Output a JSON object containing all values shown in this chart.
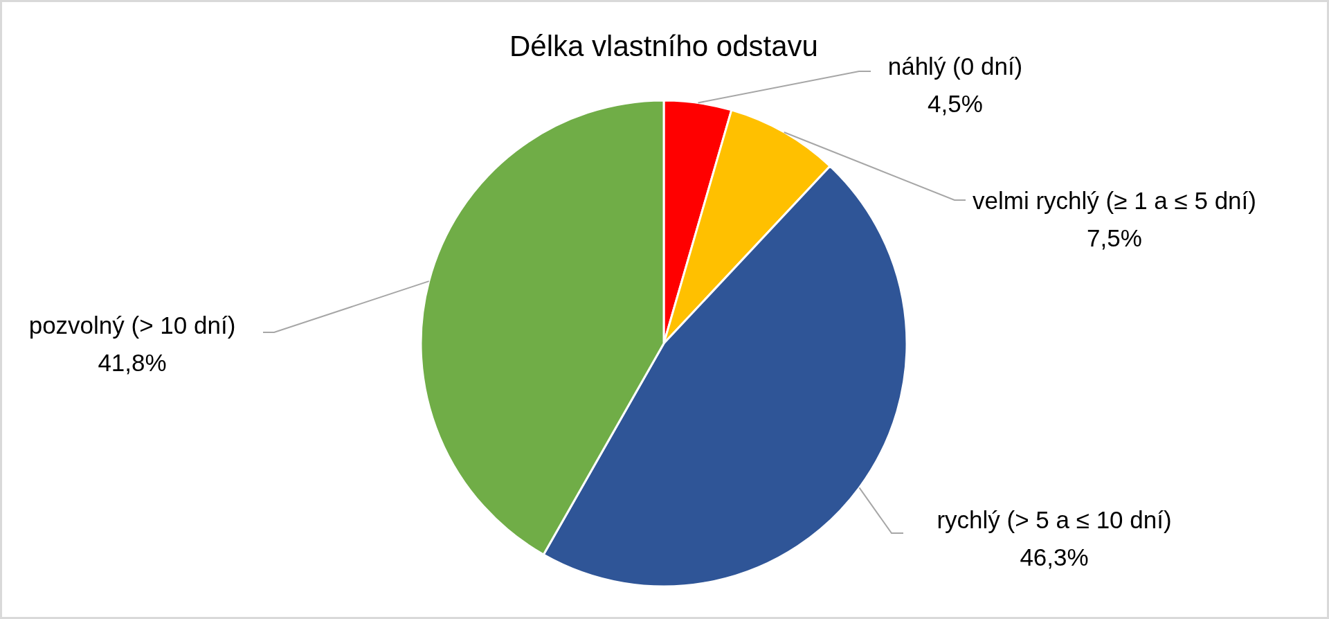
{
  "chart_data": {
    "type": "pie",
    "title": "Délka vlastního odstavu",
    "categories": [
      "náhlý (0 dní)",
      "velmi rychlý (≥ 1 a ≤ 5 dní)",
      "rychlý (> 5 a ≤ 10 dní)",
      "pozvolný (> 10 dní)"
    ],
    "values": [
      4.5,
      7.5,
      46.3,
      41.8
    ],
    "colors": [
      "#ff0000",
      "#ffc000",
      "#2f5597",
      "#70ad47"
    ],
    "value_labels": [
      "4,5%",
      "7,5%",
      "46,3%",
      "41,8%"
    ]
  }
}
